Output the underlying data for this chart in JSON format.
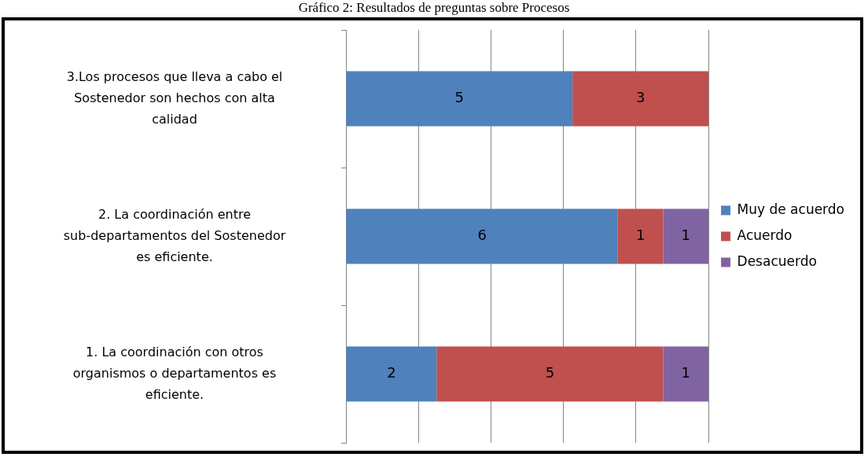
{
  "chart_data": {
    "type": "bar",
    "orientation": "horizontal",
    "stacked": true,
    "title": "Gráfico 2: Resultados de preguntas sobre Procesos",
    "categories": [
      "3.Los procesos que lleva a cabo el Sostenedor son hechos con alta calidad",
      "2. La coordinación entre sub-departamentos del Sostenedor es eficiente.",
      "1. La coordinación con otros organismos o departamentos es eficiente."
    ],
    "series": [
      {
        "name": "Muy de acuerdo",
        "color": "#4f81bd",
        "values": [
          5,
          6,
          2
        ]
      },
      {
        "name": "Acuerdo",
        "color": "#c0504d",
        "values": [
          3,
          1,
          5
        ]
      },
      {
        "name": "Desacuerdo",
        "color": "#8064a2",
        "values": [
          null,
          1,
          1
        ]
      }
    ],
    "xlim": [
      0,
      8
    ],
    "xticks": [
      {
        "value": 0,
        "label": null
      },
      {
        "value": 1.6,
        "label": null
      },
      {
        "value": 3.2,
        "label": null
      },
      {
        "value": 4.8,
        "label": null
      },
      {
        "value": 6.4,
        "label": null
      },
      {
        "value": 8,
        "label": null
      }
    ],
    "grid": "x",
    "legend": "right",
    "data_labels": true,
    "tick_labels": "y"
  }
}
